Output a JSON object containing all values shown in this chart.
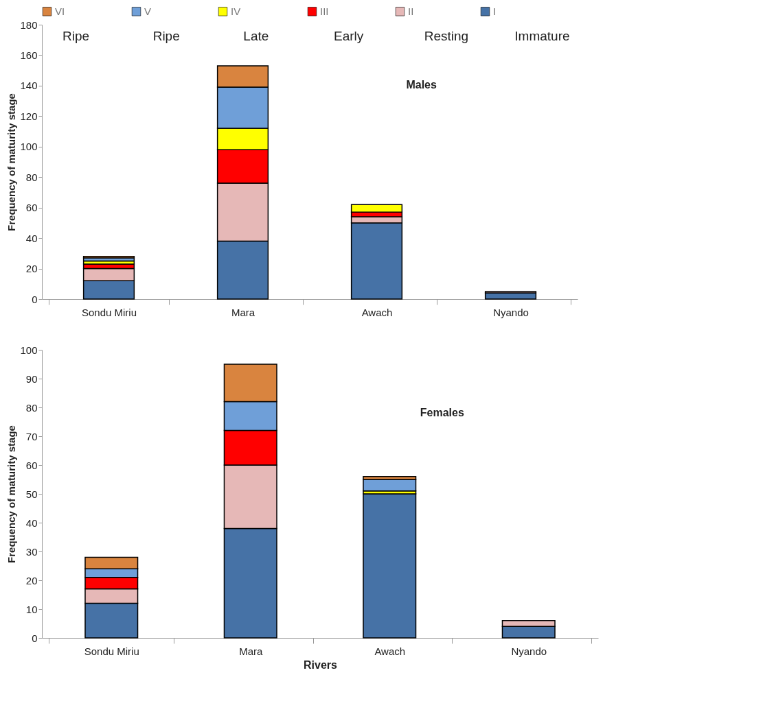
{
  "chart_data": [
    {
      "type": "bar",
      "stacked": true,
      "ylabel": "Frequency of maturity stage",
      "categories": [
        "Sondu Miriu",
        "Mara",
        "Awach",
        "Nyando"
      ],
      "ylim": [
        0,
        180
      ],
      "yticks": [
        0,
        20,
        40,
        60,
        80,
        100,
        120,
        140,
        160,
        180
      ],
      "legend": "top",
      "annotations": [
        "Ripe",
        "Ripe",
        "Late",
        "Early",
        "Resting",
        "Immature",
        "Males"
      ],
      "series": [
        {
          "name": "I",
          "color": "#4672a6",
          "values": [
            12,
            38,
            50,
            4
          ]
        },
        {
          "name": "II",
          "color": "#e6b8b7",
          "values": [
            8,
            38,
            4,
            1
          ]
        },
        {
          "name": "III",
          "color": "#ff0000",
          "values": [
            3,
            22,
            3,
            0
          ]
        },
        {
          "name": "IV",
          "color": "#ffff00",
          "values": [
            2,
            14,
            5,
            0
          ]
        },
        {
          "name": "V",
          "color": "#6f9fd8",
          "values": [
            2,
            27,
            0,
            0
          ]
        },
        {
          "name": "VI",
          "color": "#d9843f",
          "values": [
            1,
            14,
            0,
            0
          ]
        }
      ]
    },
    {
      "type": "bar",
      "stacked": true,
      "ylabel": "Frequency of maturity stage",
      "xlabel": "Rivers",
      "categories": [
        "Sondu Miriu",
        "Mara",
        "Awach",
        "Nyando"
      ],
      "ylim": [
        0,
        100
      ],
      "yticks": [
        0,
        10,
        20,
        30,
        40,
        50,
        60,
        70,
        80,
        90,
        100
      ],
      "annotations": [
        "Females"
      ],
      "series": [
        {
          "name": "I",
          "color": "#4672a6",
          "values": [
            12,
            38,
            50,
            4
          ]
        },
        {
          "name": "II",
          "color": "#e6b8b7",
          "values": [
            5,
            22,
            0,
            2
          ]
        },
        {
          "name": "III",
          "color": "#ff0000",
          "values": [
            4,
            12,
            0,
            0
          ]
        },
        {
          "name": "IV",
          "color": "#ffff00",
          "values": [
            0,
            0,
            1,
            0
          ]
        },
        {
          "name": "V",
          "color": "#6f9fd8",
          "values": [
            3,
            10,
            4,
            0
          ]
        },
        {
          "name": "VI",
          "color": "#d9843f",
          "values": [
            4,
            13,
            1,
            0
          ]
        }
      ]
    }
  ]
}
